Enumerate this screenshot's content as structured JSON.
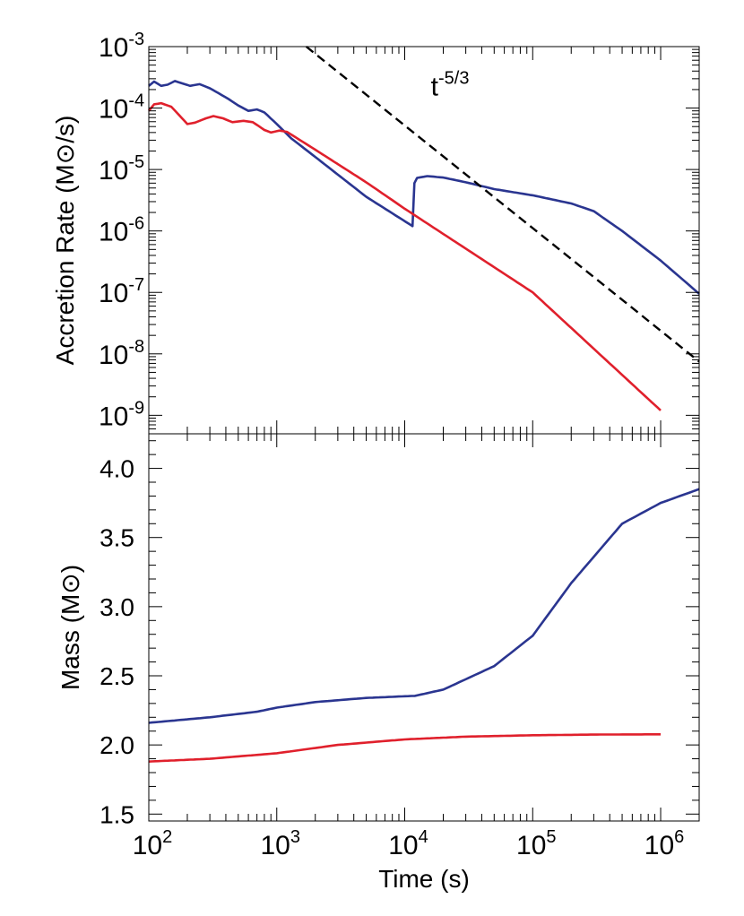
{
  "chart_data": [
    {
      "type": "line",
      "panel": "top",
      "ylabel": "Accretion Rate (M⊙/s)",
      "xlabel": "",
      "x_scale": "log",
      "y_scale": "log",
      "xlim": [
        100,
        2000000
      ],
      "ylim": [
        5e-10,
        0.001
      ],
      "grid": false,
      "legend": "none",
      "x_tick_labels": [
        {
          "value": 100,
          "base": "10",
          "exp": "2"
        },
        {
          "value": 1000,
          "base": "10",
          "exp": "3"
        },
        {
          "value": 10000,
          "base": "10",
          "exp": "4"
        },
        {
          "value": 100000,
          "base": "10",
          "exp": "5"
        },
        {
          "value": 1000000,
          "base": "10",
          "exp": "6"
        }
      ],
      "y_tick_labels": [
        {
          "value": 0.001,
          "base": "10",
          "exp": "-3"
        },
        {
          "value": 0.0001,
          "base": "10",
          "exp": "-4"
        },
        {
          "value": 1e-05,
          "base": "10",
          "exp": "-5"
        },
        {
          "value": 1e-06,
          "base": "10",
          "exp": "-6"
        },
        {
          "value": 1e-07,
          "base": "10",
          "exp": "-7"
        },
        {
          "value": 1e-08,
          "base": "10",
          "exp": "-8"
        },
        {
          "value": 1e-09,
          "base": "10",
          "exp": "-9"
        }
      ],
      "annotation": {
        "base": "t",
        "exp": "-5/3",
        "x": 16000,
        "y": 0.00016
      },
      "series": [
        {
          "color": "#2a3590",
          "style": "solid",
          "points": [
            [
              100,
              0.00023
            ],
            [
              110,
              0.00027
            ],
            [
              125,
              0.00023
            ],
            [
              140,
              0.00024
            ],
            [
              160,
              0.000275
            ],
            [
              180,
              0.000255
            ],
            [
              210,
              0.00023
            ],
            [
              250,
              0.000245
            ],
            [
              300,
              0.00021
            ],
            [
              350,
              0.000175
            ],
            [
              420,
              0.00014
            ],
            [
              500,
              0.00011
            ],
            [
              600,
              9e-05
            ],
            [
              700,
              9.5e-05
            ],
            [
              800,
              8.5e-05
            ],
            [
              1000,
              5.5e-05
            ],
            [
              1300,
              3.2e-05
            ],
            [
              2000,
              1.6e-05
            ],
            [
              5000,
              3.6e-06
            ],
            [
              11500,
              1.2e-06
            ],
            [
              11900,
              6e-06
            ],
            [
              12500,
              7.3e-06
            ],
            [
              15000,
              7.8e-06
            ],
            [
              20000,
              7.4e-06
            ],
            [
              30000,
              6.2e-06
            ],
            [
              50000,
              4.8e-06
            ],
            [
              100000,
              3.8e-06
            ],
            [
              200000,
              2.8e-06
            ],
            [
              300000,
              2.1e-06
            ],
            [
              500000,
              1e-06
            ],
            [
              1000000,
              3.3e-07
            ],
            [
              2000000,
              9.5e-08
            ]
          ]
        },
        {
          "color": "#e0202c",
          "style": "solid",
          "points": [
            [
              100,
              9e-05
            ],
            [
              110,
              0.000115
            ],
            [
              125,
              0.00012
            ],
            [
              150,
              0.000105
            ],
            [
              180,
              7e-05
            ],
            [
              200,
              5.5e-05
            ],
            [
              230,
              5.8e-05
            ],
            [
              280,
              6.8e-05
            ],
            [
              320,
              7.4e-05
            ],
            [
              380,
              6.8e-05
            ],
            [
              450,
              5.9e-05
            ],
            [
              550,
              6.2e-05
            ],
            [
              650,
              5.9e-05
            ],
            [
              800,
              4.4e-05
            ],
            [
              900,
              4e-05
            ],
            [
              1050,
              4.3e-05
            ],
            [
              1200,
              4.1e-05
            ],
            [
              2000,
              2.1e-05
            ],
            [
              5000,
              6.2e-06
            ],
            [
              10000,
              2.3e-06
            ],
            [
              100000,
              1e-07
            ],
            [
              1000000,
              1.2e-09
            ]
          ]
        },
        {
          "color": "#000000",
          "style": "dashed",
          "points": [
            [
              1700,
              0.001
            ],
            [
              2000000,
              7.5e-09
            ]
          ]
        }
      ]
    },
    {
      "type": "line",
      "panel": "bottom",
      "xlabel": "Time (s)",
      "ylabel": "Mass (M⊙)",
      "x_scale": "log",
      "y_scale": "linear",
      "xlim": [
        100,
        2000000
      ],
      "ylim": [
        1.45,
        4.25
      ],
      "grid": false,
      "legend": "none",
      "y_tick_labels": [
        "1.5",
        "2.0",
        "2.5",
        "3.0",
        "3.5",
        "4.0"
      ],
      "series": [
        {
          "color": "#2a3590",
          "points": [
            [
              100,
              2.16
            ],
            [
              300,
              2.2
            ],
            [
              700,
              2.24
            ],
            [
              1000,
              2.27
            ],
            [
              2000,
              2.31
            ],
            [
              5000,
              2.34
            ],
            [
              12000,
              2.355
            ],
            [
              20000,
              2.4
            ],
            [
              50000,
              2.57
            ],
            [
              100000,
              2.79
            ],
            [
              200000,
              3.17
            ],
            [
              500000,
              3.6
            ],
            [
              1000000,
              3.75
            ],
            [
              2000000,
              3.85
            ]
          ]
        },
        {
          "color": "#e0202c",
          "points": [
            [
              100,
              1.88
            ],
            [
              300,
              1.9
            ],
            [
              1000,
              1.94
            ],
            [
              3000,
              2.0
            ],
            [
              10000,
              2.04
            ],
            [
              30000,
              2.06
            ],
            [
              100000,
              2.07
            ],
            [
              300000,
              2.075
            ],
            [
              1000000,
              2.077
            ]
          ]
        }
      ]
    }
  ]
}
